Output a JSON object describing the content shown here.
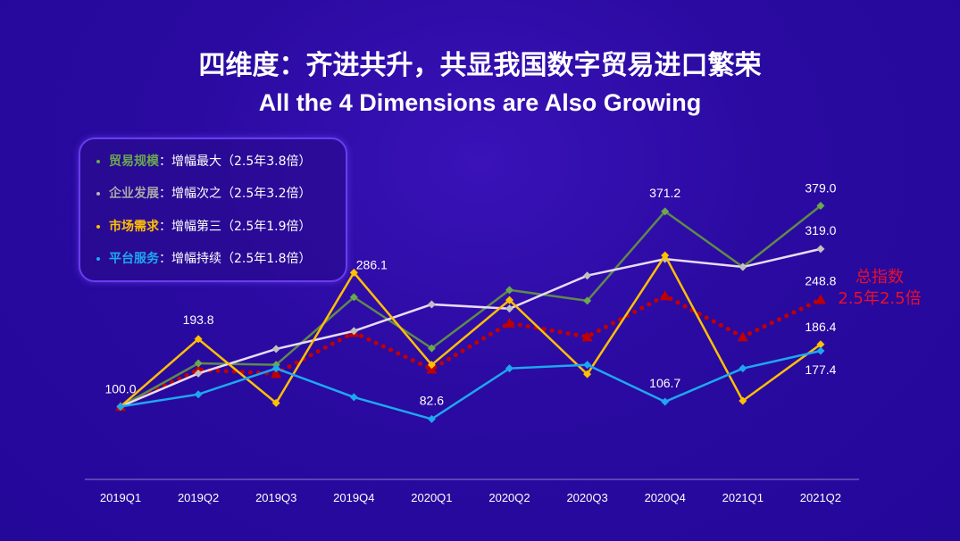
{
  "header": {
    "title": "四维度：齐进共升，共显我国数字贸易进口繁荣",
    "subtitle": "All the 4 Dimensions are Also Growing"
  },
  "legend": [
    {
      "name": "贸易规模",
      "desc": "：增幅最大（2.5年3.8倍）",
      "color": "#6aa84f"
    },
    {
      "name": "企业发展",
      "desc": "：增幅次之（2.5年3.2倍）",
      "color": "#b7b7b7"
    },
    {
      "name": "市场需求",
      "desc": "：增幅第三（2.5年1.9倍）",
      "color": "#ffc000"
    },
    {
      "name": "平台服务",
      "desc": "：增幅持续（2.5年1.8倍）",
      "color": "#1ea7f0"
    }
  ],
  "chart_data": {
    "type": "line",
    "categories": [
      "2019Q1",
      "2019Q2",
      "2019Q3",
      "2019Q4",
      "2020Q1",
      "2020Q2",
      "2020Q3",
      "2020Q4",
      "2021Q1",
      "2021Q2"
    ],
    "series": [
      {
        "name": "贸易规模",
        "color": "#5f8a4a",
        "marker": "#6aa84f",
        "values": [
          100,
          160,
          158,
          252,
          181,
          262,
          247,
          371.2,
          294,
          379.0
        ]
      },
      {
        "name": "企业发展",
        "color": "#e8dcf5",
        "marker": "#c0c0c0",
        "values": [
          100,
          146,
          180,
          205,
          242,
          236,
          282,
          305,
          294,
          319.0
        ]
      },
      {
        "name": "市场需求",
        "color": "#ffc000",
        "marker": "#ffc000",
        "values": [
          100,
          193.8,
          105,
          286.1,
          158,
          248,
          145,
          310,
          108,
          186.4
        ]
      },
      {
        "name": "平台服务",
        "color": "#1ea7f0",
        "marker": "#1ea7f0",
        "values": [
          100,
          117,
          153,
          113,
          82.6,
          153,
          158,
          106.7,
          153,
          177.4
        ]
      },
      {
        "name": "总指数",
        "color": "#c00000",
        "marker": "#c00000",
        "dotted": true,
        "values": [
          100,
          151,
          146,
          203,
          152,
          216,
          197,
          254,
          197,
          248.8
        ]
      }
    ],
    "data_labels": [
      {
        "series": 2,
        "index": 0,
        "text": "100.0"
      },
      {
        "series": 2,
        "index": 1,
        "text": "193.8"
      },
      {
        "series": 2,
        "index": 3,
        "text": "286.1"
      },
      {
        "series": 3,
        "index": 4,
        "text": "82.6"
      },
      {
        "series": 0,
        "index": 7,
        "text": "371.2"
      },
      {
        "series": 3,
        "index": 7,
        "text": "106.7"
      },
      {
        "series": 0,
        "index": 9,
        "text": "379.0"
      },
      {
        "series": 1,
        "index": 9,
        "text": "319.0"
      },
      {
        "series": 4,
        "index": 9,
        "text": "248.8"
      },
      {
        "series": 2,
        "index": 9,
        "text": "186.4"
      },
      {
        "series": 3,
        "index": 9,
        "text": "177.4"
      }
    ],
    "annotation": {
      "line1": "总指数",
      "line2": "2.5年2.5倍",
      "color": "#e8102a"
    },
    "grid": false,
    "legend_position": "top-left"
  }
}
